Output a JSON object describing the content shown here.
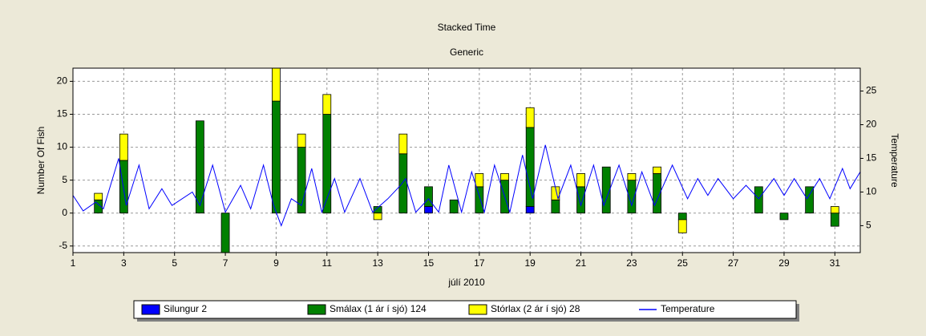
{
  "chart_data": {
    "type": "stacked-bar-line",
    "title": "Stacked Time",
    "subtitle": "Generic",
    "xlabel": "júlí 2010",
    "ylabel": "Number Of Fish",
    "y2label": "Temperature",
    "x": [
      1,
      2,
      3,
      4,
      5,
      6,
      7,
      8,
      9,
      10,
      11,
      12,
      13,
      14,
      15,
      16,
      17,
      18,
      19,
      20,
      21,
      22,
      23,
      24,
      25,
      26,
      27,
      28,
      29,
      30,
      31
    ],
    "xlim": [
      1,
      32
    ],
    "xticks": [
      1,
      3,
      5,
      7,
      9,
      11,
      13,
      15,
      17,
      19,
      21,
      23,
      25,
      27,
      29,
      31
    ],
    "ylim": [
      -6,
      22
    ],
    "yticks": [
      -5,
      0,
      5,
      10,
      15,
      20
    ],
    "y2lim": [
      1,
      28.4
    ],
    "y2ticks": [
      5,
      10,
      15,
      20,
      25
    ],
    "grid": true,
    "legend": "bottom",
    "series": [
      {
        "name": "Silungur  2",
        "color": "#0000ff",
        "values": [
          0,
          0,
          0,
          0,
          0,
          0,
          0,
          0,
          0,
          0,
          0,
          0,
          0,
          0,
          1,
          0,
          0,
          0,
          1,
          0,
          0,
          0,
          0,
          0,
          0,
          0,
          0,
          0,
          0,
          0,
          0
        ]
      },
      {
        "name": "Smálax (1 ár í sjó)  124",
        "color": "#008000",
        "values": [
          0,
          2,
          8,
          0,
          0,
          14,
          -6,
          0,
          17,
          10,
          15,
          0,
          1,
          9,
          3,
          2,
          4,
          5,
          12,
          2,
          4,
          7,
          5,
          6,
          -1,
          0,
          0,
          4,
          -1,
          4,
          -2
        ]
      },
      {
        "name": "Stórlax (2 ár í sjó)  28",
        "color": "#ffff00",
        "values": [
          0,
          1,
          4,
          0,
          0,
          0,
          0,
          0,
          5,
          2,
          3,
          0,
          -1,
          3,
          0,
          0,
          2,
          1,
          3,
          2,
          2,
          0,
          1,
          1,
          -2,
          0,
          0,
          0,
          0,
          0,
          1
        ]
      },
      {
        "name": "Temperature",
        "color": "#0000ff",
        "axis": "y2",
        "type": "line",
        "x": [
          1.0,
          1.4,
          1.9,
          2.2,
          2.8,
          3.1,
          3.6,
          4.0,
          4.5,
          4.9,
          5.7,
          6.0,
          6.5,
          7.0,
          7.6,
          8.0,
          8.5,
          8.9,
          9.2,
          9.6,
          10.0,
          10.4,
          10.8,
          11.3,
          11.7,
          12.3,
          12.8,
          13.4,
          13.9,
          14.1,
          14.5,
          15.0,
          15.4,
          15.8,
          16.3,
          16.7,
          17.2,
          17.6,
          18.2,
          18.7,
          19.1,
          19.6,
          20.1,
          20.6,
          21.0,
          21.5,
          21.9,
          22.5,
          23.0,
          23.4,
          23.9,
          24.6,
          25.2,
          25.6,
          26.0,
          26.4,
          27.0,
          27.5,
          28.0,
          28.6,
          29.0,
          29.4,
          29.9,
          30.4,
          30.8,
          31.3,
          31.6,
          32.0
        ],
        "values": [
          9.5,
          7.2,
          8.5,
          7.5,
          15,
          8,
          14,
          7.5,
          10.5,
          8,
          10,
          8,
          14,
          7,
          11,
          7.5,
          14,
          8,
          5,
          9,
          8,
          13.5,
          7,
          12,
          7,
          12,
          7,
          9,
          11,
          12,
          7,
          9,
          7,
          14,
          7,
          13,
          7,
          14,
          7,
          15.5,
          9,
          17,
          9,
          14,
          8,
          14,
          8,
          14,
          8,
          13,
          8,
          14,
          9,
          12,
          9.5,
          12,
          9,
          11,
          9,
          12,
          9.5,
          12,
          9,
          12,
          9,
          13.5,
          10.5,
          13
        ]
      }
    ]
  }
}
